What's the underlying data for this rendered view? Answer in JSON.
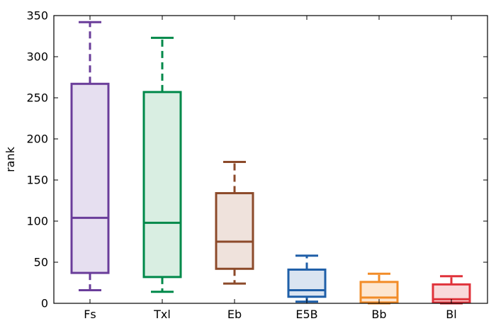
{
  "chart_data": {
    "type": "boxplot",
    "title": "",
    "xlabel": "",
    "ylabel": "rank",
    "ylim": [
      0,
      350
    ],
    "yticks": [
      0,
      50,
      100,
      150,
      200,
      250,
      300,
      350
    ],
    "grid": false,
    "categories": [
      "Fs",
      "Txl",
      "Eb",
      "E5B",
      "Bb",
      "Bl"
    ],
    "boxes": [
      {
        "label": "Fs",
        "whisker_low": 16,
        "q1": 37,
        "median": 104,
        "q3": 267,
        "whisker_high": 342,
        "color": "#6a3d9a",
        "fill": "#e6dff0"
      },
      {
        "label": "Txl",
        "whisker_low": 14,
        "q1": 32,
        "median": 98,
        "q3": 257,
        "whisker_high": 323,
        "color": "#00894a",
        "fill": "#d9eee2"
      },
      {
        "label": "Eb",
        "whisker_low": 24,
        "q1": 42,
        "median": 75,
        "q3": 134,
        "whisker_high": 172,
        "color": "#8c4a2a",
        "fill": "#efe2dc"
      },
      {
        "label": "E5B",
        "whisker_low": 2,
        "q1": 8,
        "median": 16,
        "q3": 41,
        "whisker_high": 58,
        "color": "#1f5fa8",
        "fill": "#dae4f1"
      },
      {
        "label": "Bb",
        "whisker_low": 0,
        "q1": 1,
        "median": 7,
        "q3": 26,
        "whisker_high": 36,
        "color": "#f28c28",
        "fill": "#fde6d0"
      },
      {
        "label": "Bl",
        "whisker_low": 0,
        "q1": 1,
        "median": 5,
        "q3": 23,
        "whisker_high": 33,
        "color": "#e0323a",
        "fill": "#f9dadb"
      }
    ]
  }
}
